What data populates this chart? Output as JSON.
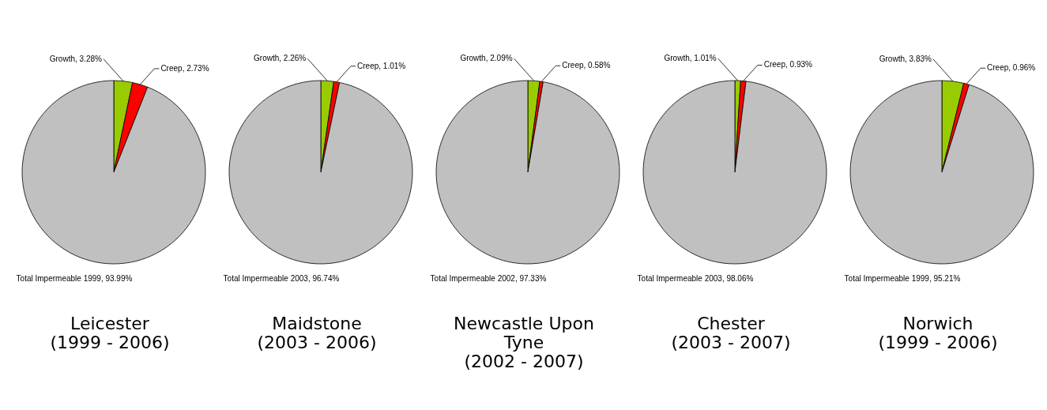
{
  "chart_data": [
    {
      "type": "pie",
      "title": "Leicester\n(1999 - 2006)",
      "categories": [
        "Growth",
        "Creep",
        "Total Impermeable 1999"
      ],
      "values": [
        3.28,
        2.73,
        93.99
      ],
      "value_labels": [
        ", 3.28%",
        ", 2.73%",
        ", 93.99%"
      ],
      "colors": [
        "#99cc00",
        "#ff0000",
        "#c0c0c0"
      ],
      "legend": false
    },
    {
      "type": "pie",
      "title": "Maidstone\n(2003 - 2006)",
      "categories": [
        "Growth",
        "Creep",
        "Total Impermeable 2003"
      ],
      "values": [
        2.26,
        1.01,
        96.74
      ],
      "value_labels": [
        ", 2.26%",
        ", 1.01%",
        ", 96.74%"
      ],
      "colors": [
        "#99cc00",
        "#ff0000",
        "#c0c0c0"
      ],
      "legend": false
    },
    {
      "type": "pie",
      "title": "Newcastle Upon Tyne\n(2002 - 2007)",
      "categories": [
        "Growth",
        "Creep",
        "Total Impermeable 2002"
      ],
      "values": [
        2.09,
        0.58,
        97.33
      ],
      "value_labels": [
        ", 2.09%",
        ", 0.58%",
        ", 97.33%"
      ],
      "colors": [
        "#99cc00",
        "#ff0000",
        "#c0c0c0"
      ],
      "legend": false
    },
    {
      "type": "pie",
      "title": "Chester\n(2003 - 2007)",
      "categories": [
        "Growth",
        "Creep",
        "Total Impermeable 2003"
      ],
      "values": [
        1.01,
        0.93,
        98.06
      ],
      "value_labels": [
        ", 1.01%",
        ", 0.93%",
        ", 98.06%"
      ],
      "colors": [
        "#99cc00",
        "#ff0000",
        "#c0c0c0"
      ],
      "legend": false
    },
    {
      "type": "pie",
      "title": "Norwich\n(1999 - 2006)",
      "categories": [
        "Growth",
        "Creep",
        "Total Impermeable 1999"
      ],
      "values": [
        3.83,
        0.96,
        95.21
      ],
      "value_labels": [
        ", 3.83%",
        ", 0.96%",
        ", 95.21%"
      ],
      "colors": [
        "#99cc00",
        "#ff0000",
        "#c0c0c0"
      ],
      "legend": false
    }
  ]
}
